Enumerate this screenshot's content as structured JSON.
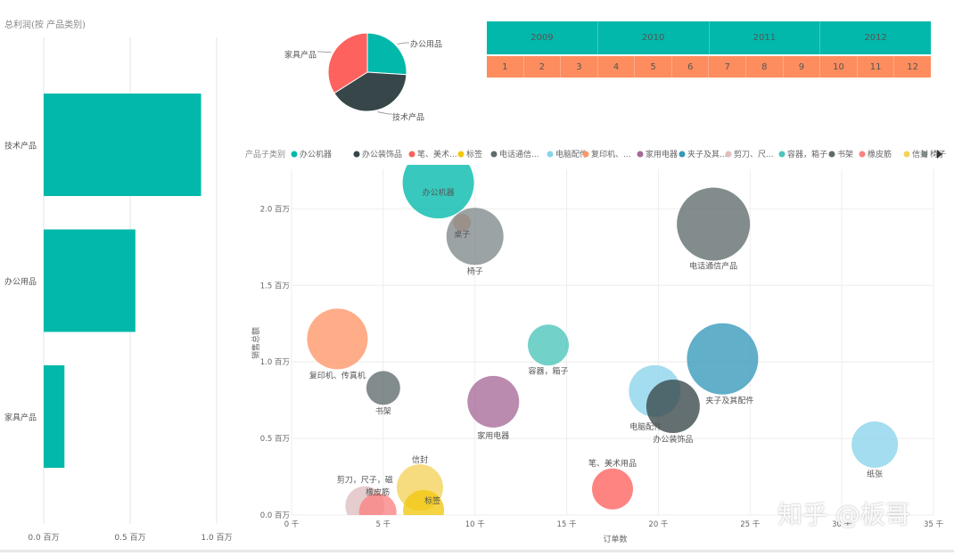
{
  "colors": {
    "teal": "#01b8aa",
    "dark": "#374649",
    "red": "#fd625e",
    "yellow": "#f2c80f",
    "grey": "#5f6b6d",
    "lightblue": "#8ad4eb",
    "orange": "#fe9666",
    "purple": "#a66999",
    "steelblue": "#3599b8",
    "pink": "#dfbfbf",
    "mint": "#4ac5bb",
    "slate": "#5f6b6d",
    "coral": "#fb8281",
    "gold": "#f4d25a",
    "ash": "#7f898a",
    "month_bg": "#fd8d5e"
  },
  "bar_chart": {
    "title": "总利润(按 产品类别)",
    "xticks": [
      "0.0 百万",
      "0.5 百万",
      "1.0 百万"
    ]
  },
  "slicer": {
    "years": [
      "2009",
      "2010",
      "2011",
      "2012"
    ],
    "months": [
      "1",
      "2",
      "3",
      "4",
      "5",
      "6",
      "7",
      "8",
      "9",
      "10",
      "11",
      "12"
    ]
  },
  "scatter": {
    "legend_title": "产品子类别",
    "legend_items": [
      "办公机器",
      "办公装饰品",
      "笔、美术...",
      "标签",
      "电话通信...",
      "电脑配件",
      "复印机、...",
      "家用电器",
      "夹子及其...",
      "剪刀、尺...",
      "容器，箱子",
      "书架",
      "橡皮筋",
      "信封",
      "椅子"
    ],
    "xticks": [
      "0 千",
      "5 千",
      "10 千",
      "15 千",
      "20 千",
      "25 千",
      "30 千",
      "35 千"
    ],
    "yticks": [
      "0.0 百万",
      "0.5 百万",
      "1.0 百万",
      "1.5 百万",
      "2.0 百万"
    ]
  },
  "watermark": "知乎 @板哥",
  "chart_data": [
    {
      "type": "bar",
      "title": "总利润(按 产品类别)",
      "orientation": "horizontal",
      "categories": [
        "技术产品",
        "办公用品",
        "家具产品"
      ],
      "values": [
        0.91,
        0.53,
        0.12
      ],
      "xlabel": "",
      "ylabel": "",
      "xlim": [
        0,
        1.1
      ],
      "unit": "百万",
      "color": "#01b8aa"
    },
    {
      "type": "pie",
      "title": "",
      "labels": [
        "办公用品",
        "技术产品",
        "家具产品"
      ],
      "values": [
        26,
        40,
        34
      ],
      "colors": [
        "#01b8aa",
        "#374649",
        "#fd625e"
      ]
    },
    {
      "type": "scatter",
      "title": "",
      "xlabel": "订单数",
      "ylabel": "销售总额",
      "xlim": [
        0,
        35
      ],
      "ylim": [
        0,
        2.2
      ],
      "x_unit": "千",
      "y_unit": "百万",
      "size_meaning": "bubble size",
      "points": [
        {
          "label": "办公机器",
          "x": 8,
          "y": 2.17,
          "size": 40,
          "color": "#01b8aa"
        },
        {
          "label": "桌子",
          "x": 9.3,
          "y": 1.91,
          "size": 10,
          "color": "#fe9666"
        },
        {
          "label": "椅子",
          "x": 10,
          "y": 1.82,
          "size": 32,
          "color": "#7f898a"
        },
        {
          "label": "电话通信产品",
          "x": 23,
          "y": 1.9,
          "size": 41,
          "color": "#5f6b6d"
        },
        {
          "label": "复印机、传真机",
          "x": 2.5,
          "y": 1.15,
          "size": 34,
          "color": "#fe9666"
        },
        {
          "label": "容器，箱子",
          "x": 14,
          "y": 1.11,
          "size": 23,
          "color": "#4ac5bb"
        },
        {
          "label": "夹子及其配件",
          "x": 23.5,
          "y": 1.02,
          "size": 40,
          "color": "#3599b8"
        },
        {
          "label": "书架",
          "x": 5,
          "y": 0.83,
          "size": 19,
          "color": "#5f6b6d"
        },
        {
          "label": "电脑配件",
          "x": 19.8,
          "y": 0.81,
          "size": 29,
          "color": "#8ad4eb"
        },
        {
          "label": "办公装饰品",
          "x": 20.8,
          "y": 0.71,
          "size": 30,
          "color": "#374649"
        },
        {
          "label": "家用电器",
          "x": 11,
          "y": 0.74,
          "size": 29,
          "color": "#a66999"
        },
        {
          "label": "纸张",
          "x": 31.8,
          "y": 0.46,
          "size": 26,
          "color": "#8ad4eb"
        },
        {
          "label": "笔、美术用品",
          "x": 17.5,
          "y": 0.17,
          "size": 23,
          "color": "#fd625e"
        },
        {
          "label": "信封",
          "x": 7,
          "y": 0.18,
          "size": 26,
          "color": "#f4d25a"
        },
        {
          "label": "标签",
          "x": 7.2,
          "y": 0.03,
          "size": 23,
          "color": "#f2c80f"
        },
        {
          "label": "剪刀，尺子，磁",
          "x": 4,
          "y": 0.06,
          "size": 22,
          "color": "#dfbfbf"
        },
        {
          "label": "橡皮筋",
          "x": 4.7,
          "y": 0.02,
          "size": 21,
          "color": "#fb8281"
        }
      ]
    }
  ]
}
